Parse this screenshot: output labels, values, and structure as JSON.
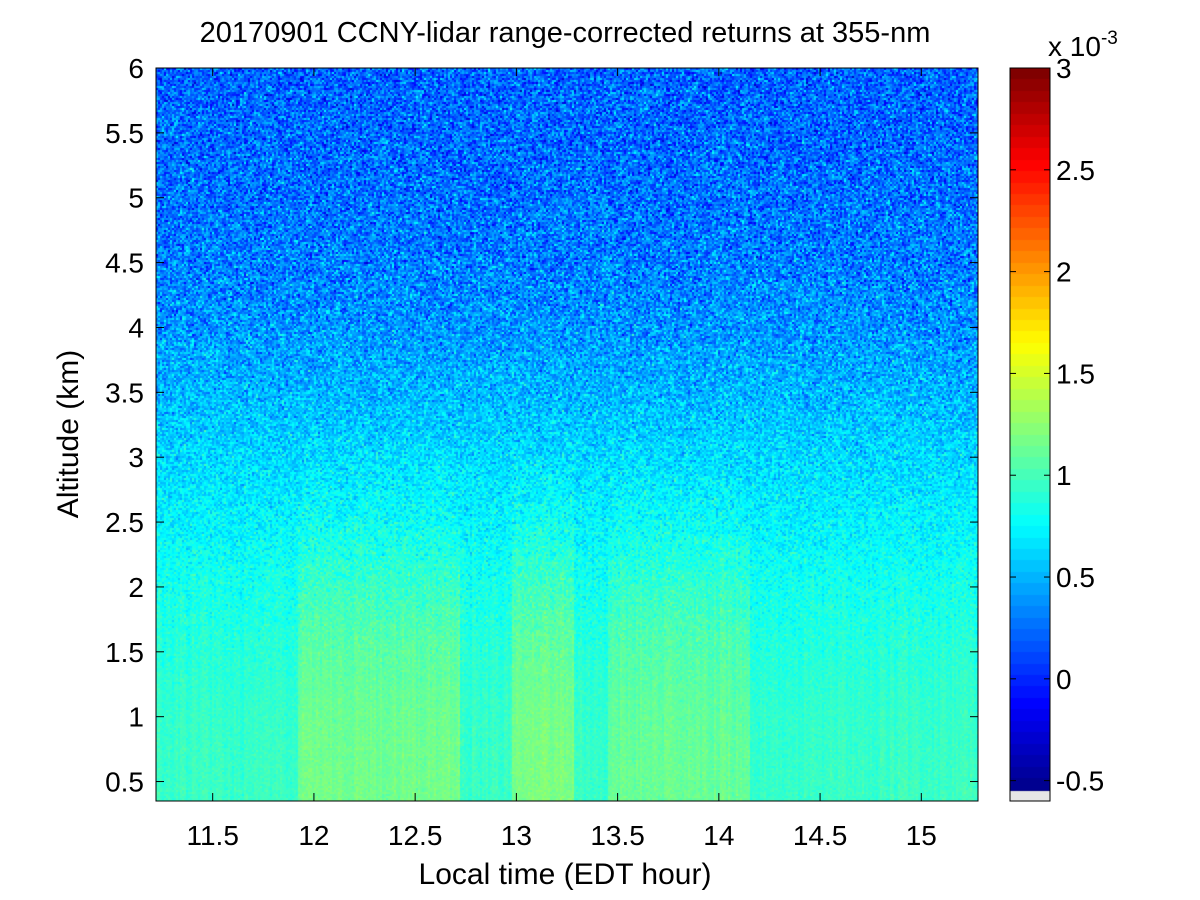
{
  "chart_data": {
    "type": "heatmap",
    "title": "20170901 CCNY-lidar range-corrected returns at 355-nm",
    "xlabel": "Local time (EDT hour)",
    "ylabel": "Altitude (km)",
    "xlim": [
      11.22,
      15.28
    ],
    "ylim": [
      0.35,
      6.0
    ],
    "x_ticks": [
      11.5,
      12,
      12.5,
      13,
      13.5,
      14,
      14.5,
      15
    ],
    "x_tick_labels": [
      "11.5",
      "12",
      "12.5",
      "13",
      "13.5",
      "14",
      "14.5",
      "15"
    ],
    "y_ticks": [
      0.5,
      1,
      1.5,
      2,
      2.5,
      3,
      3.5,
      4,
      4.5,
      5,
      5.5,
      6
    ],
    "y_tick_labels": [
      "0.5",
      "1",
      "1.5",
      "2",
      "2.5",
      "3",
      "3.5",
      "4",
      "4.5",
      "5",
      "5.5",
      "6"
    ],
    "colorbar": {
      "colormap": "jet",
      "clim": [
        -0.6,
        3.0
      ],
      "ticks": [
        -0.5,
        0,
        0.5,
        1,
        1.5,
        2,
        2.5,
        3
      ],
      "tick_labels": [
        "-0.5",
        "0",
        "0.5",
        "1",
        "1.5",
        "2",
        "2.5",
        "3"
      ],
      "exponent_base": "x 10",
      "exponent_power": "-3"
    },
    "profile": {
      "altitude_km": [
        0.35,
        0.5,
        1.0,
        1.5,
        2.0,
        2.5,
        3.0,
        3.5,
        4.0,
        4.5,
        5.0,
        5.5,
        6.0
      ],
      "mean_value_e-3": [
        0.95,
        0.95,
        0.93,
        0.88,
        0.82,
        0.72,
        0.62,
        0.5,
        0.38,
        0.3,
        0.25,
        0.22,
        0.2
      ]
    },
    "enhanced_periods": [
      {
        "start": 11.92,
        "end": 12.72,
        "factor": 1.22
      },
      {
        "start": 12.98,
        "end": 13.28,
        "factor": 1.26
      },
      {
        "start": 13.45,
        "end": 14.15,
        "factor": 1.18
      }
    ]
  }
}
